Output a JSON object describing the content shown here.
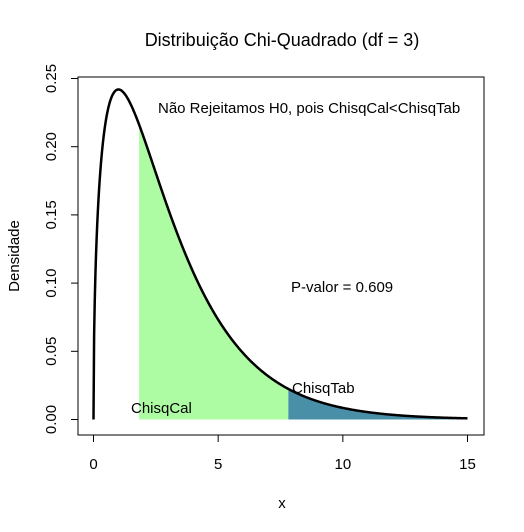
{
  "chart_data": {
    "type": "area",
    "title": "Distribuição Chi-Quadrado  (df = 3)",
    "xlabel": "x",
    "ylabel": "Densidade",
    "df": 3,
    "xlim": [
      0,
      15
    ],
    "ylim": [
      0,
      0.25
    ],
    "x_ticks": [
      "0",
      "5",
      "10",
      "15"
    ],
    "x_tick_values": [
      0,
      5,
      10,
      15
    ],
    "y_ticks": [
      "0.00",
      "0.05",
      "0.10",
      "0.15",
      "0.20",
      "0.25"
    ],
    "y_tick_values": [
      0,
      0.05,
      0.1,
      0.15,
      0.2,
      0.25
    ],
    "grid": false,
    "chisq_cal": 1.83,
    "chisq_tab": 7.815,
    "p_value": 0.609,
    "region_colors": {
      "acceptance": "#adfca3",
      "rejection": "#4a8fa8",
      "curve": "#000000"
    },
    "annotations": {
      "decision": "Não Rejeitamos H0, pois ChisqCal<ChisqTab",
      "p_value_text": "P-valor = 0.609",
      "chisq_tab_label": "ChisqTab",
      "chisq_cal_label": "ChisqCal"
    }
  }
}
